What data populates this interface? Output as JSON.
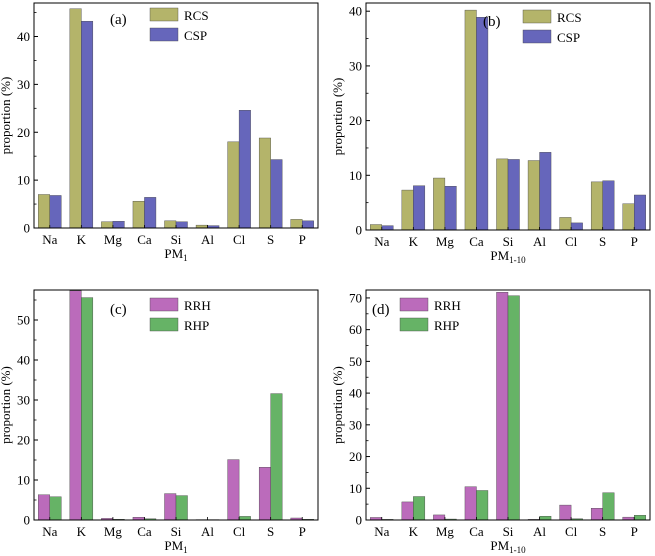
{
  "chart_data": [
    {
      "type": "bar",
      "panel_label": "(a)",
      "categories": [
        "Na",
        "K",
        "Mg",
        "Ca",
        "Si",
        "Al",
        "Cl",
        "S",
        "P"
      ],
      "xlabel": "PM",
      "xlabel_sub": "1",
      "ylabel": "proportion (%)",
      "ylim": [
        0,
        47
      ],
      "yticks": [
        "0",
        "10",
        "20",
        "30",
        "40"
      ],
      "legend_position": "top-center",
      "series": [
        {
          "name": "RCS",
          "color": "#b4b46a",
          "values": [
            7.0,
            45.8,
            1.3,
            5.6,
            1.5,
            0.6,
            18.0,
            18.8,
            1.8
          ]
        },
        {
          "name": "CSP",
          "color": "#6666bb",
          "values": [
            6.8,
            43.2,
            1.4,
            6.4,
            1.3,
            0.5,
            24.6,
            14.3,
            1.5
          ]
        }
      ]
    },
    {
      "type": "bar",
      "panel_label": "(b)",
      "categories": [
        "Na",
        "K",
        "Mg",
        "Ca",
        "Si",
        "Al",
        "Cl",
        "S",
        "P"
      ],
      "xlabel": "PM",
      "xlabel_sub": "1-10",
      "ylabel": "proportion (%)",
      "ylim": [
        0,
        41.5
      ],
      "yticks": [
        "0",
        "10",
        "20",
        "30",
        "40"
      ],
      "legend_position": "top-right",
      "series": [
        {
          "name": "RCS",
          "color": "#b4b46a",
          "values": [
            1.0,
            7.3,
            9.5,
            40.2,
            13.0,
            12.7,
            2.3,
            8.8,
            4.8
          ]
        },
        {
          "name": "CSP",
          "color": "#6666bb",
          "values": [
            0.8,
            8.1,
            8.0,
            38.9,
            12.9,
            14.2,
            1.3,
            9.0,
            6.4
          ]
        }
      ]
    },
    {
      "type": "bar",
      "panel_label": "(c)",
      "categories": [
        "Na",
        "K",
        "Mg",
        "Ca",
        "Si",
        "Al",
        "Cl",
        "S",
        "P"
      ],
      "xlabel": "PM",
      "xlabel_sub": "1",
      "ylabel": "proportion (%)",
      "ylim": [
        0,
        57.5
      ],
      "yticks": [
        "0",
        "10",
        "20",
        "30",
        "40",
        "50"
      ],
      "legend_position": "top-center",
      "series": [
        {
          "name": "RRH",
          "color": "#bb6bbb",
          "values": [
            6.3,
            57.3,
            0.4,
            0.7,
            6.6,
            0.1,
            15.1,
            13.2,
            0.5
          ]
        },
        {
          "name": "RHP",
          "color": "#66b366",
          "values": [
            5.8,
            55.6,
            0.2,
            0.3,
            6.1,
            0.1,
            0.9,
            31.6,
            0.2
          ]
        }
      ]
    },
    {
      "type": "bar",
      "panel_label": "(d)",
      "categories": [
        "Na",
        "K",
        "Mg",
        "Ca",
        "Si",
        "Al",
        "Cl",
        "S",
        "P"
      ],
      "xlabel": "PM",
      "xlabel_sub": "1-10",
      "ylabel": "proportion (%)",
      "ylim": [
        0,
        72.5
      ],
      "yticks": [
        "0",
        "10",
        "20",
        "30",
        "40",
        "50",
        "60",
        "70"
      ],
      "legend_position": "top-left",
      "series": [
        {
          "name": "RRH",
          "color": "#bb6bbb",
          "values": [
            0.8,
            5.7,
            1.6,
            10.5,
            71.8,
            0.2,
            4.7,
            3.7,
            0.9
          ]
        },
        {
          "name": "RHP",
          "color": "#66b366",
          "values": [
            0.2,
            7.4,
            0.3,
            9.3,
            70.7,
            1.2,
            0.4,
            8.6,
            1.5
          ]
        }
      ]
    }
  ]
}
